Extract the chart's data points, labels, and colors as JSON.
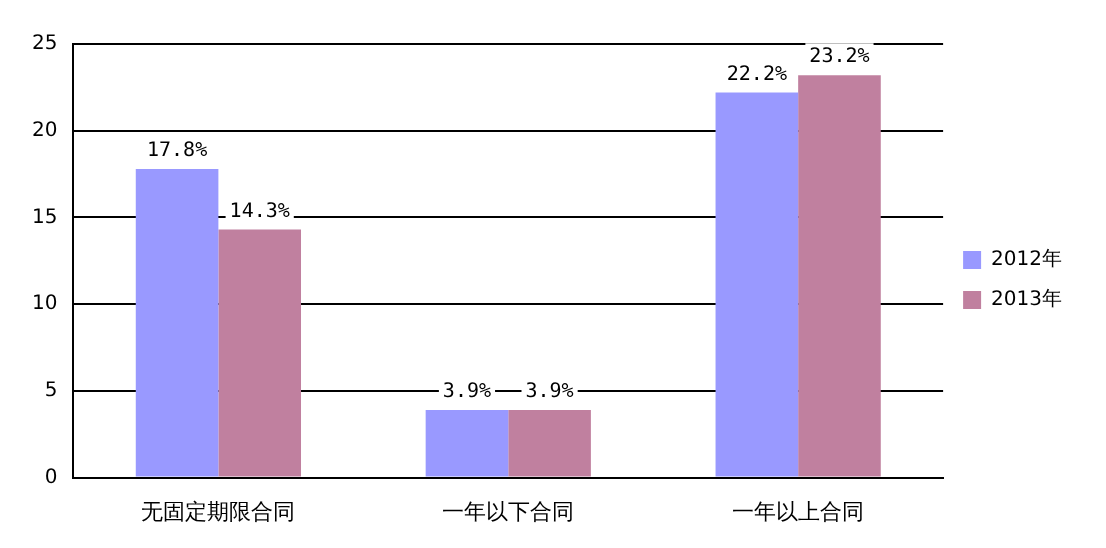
{
  "chart_data": {
    "type": "bar",
    "categories": [
      "无固定期限合同",
      "一年以下合同",
      "一年以上合同"
    ],
    "series": [
      {
        "name": "2012年",
        "color": "#9999ff",
        "values": [
          17.8,
          3.9,
          22.2
        ],
        "value_labels": [
          "17.8%",
          "3.9%",
          "22.2%"
        ]
      },
      {
        "name": "2013年",
        "color": "#c0809f",
        "values": [
          14.3,
          3.9,
          23.2
        ],
        "value_labels": [
          "14.3%",
          "3.9%",
          "23.2%"
        ]
      }
    ],
    "ylim": [
      0,
      25
    ],
    "yticks": [
      0,
      5,
      10,
      15,
      20,
      25
    ],
    "grid": "y",
    "legend": "right"
  }
}
